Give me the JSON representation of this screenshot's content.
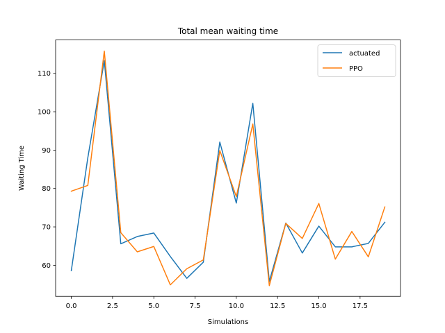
{
  "chart_data": {
    "type": "line",
    "title": "Total mean waiting time",
    "xlabel": "Simulations",
    "ylabel": "Waiting Time",
    "xlim": [
      -0.95,
      19.95
    ],
    "ylim": [
      51.9,
      118.7
    ],
    "xticks": [
      0.0,
      2.5,
      5.0,
      7.5,
      10.0,
      12.5,
      15.0,
      17.5
    ],
    "xtick_labels": [
      "0.0",
      "2.5",
      "5.0",
      "7.5",
      "10.0",
      "12.5",
      "15.0",
      "17.5"
    ],
    "yticks": [
      60,
      70,
      80,
      90,
      100,
      110
    ],
    "ytick_labels": [
      "60",
      "70",
      "80",
      "90",
      "100",
      "110"
    ],
    "grid": false,
    "legend_position": "top-right",
    "x": [
      0,
      1,
      2,
      3,
      4,
      5,
      6,
      7,
      8,
      9,
      10,
      11,
      12,
      13,
      14,
      15,
      16,
      17,
      18,
      19
    ],
    "series": [
      {
        "name": "actuated",
        "color": "#1f77b4",
        "values": [
          58.6,
          88.0,
          113.3,
          65.6,
          67.5,
          68.4,
          62.3,
          56.6,
          60.8,
          92.1,
          76.2,
          102.2,
          55.8,
          71.0,
          63.2,
          70.2,
          64.8,
          64.8,
          65.7,
          71.2
        ]
      },
      {
        "name": "PPO",
        "color": "#ff7f0e",
        "values": [
          79.3,
          80.8,
          115.8,
          68.5,
          63.5,
          64.9,
          54.9,
          59.1,
          61.4,
          89.9,
          77.9,
          96.8,
          54.7,
          70.9,
          67.0,
          76.1,
          61.6,
          68.8,
          62.2,
          75.2
        ]
      }
    ]
  }
}
